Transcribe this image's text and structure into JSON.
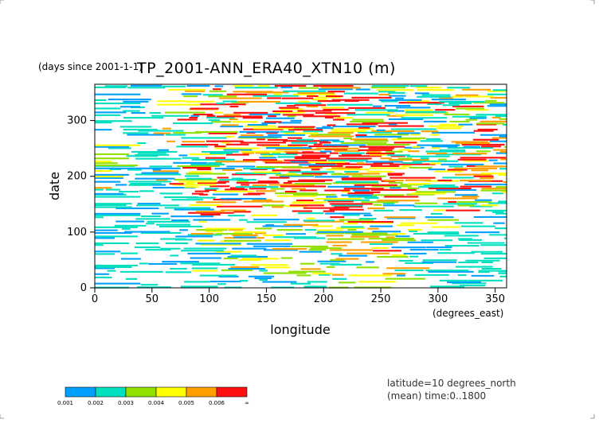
{
  "chart_data": {
    "type": "heatmap",
    "title": "TP_2001-ANN_ERA40_XTN10 (m)",
    "y_units_note": "(days since 2001-1-1)",
    "xlabel": "longitude",
    "x_units": "(degrees_east)",
    "ylabel": "date",
    "xlim": [
      0,
      360
    ],
    "ylim": [
      0,
      365
    ],
    "x_ticks": [
      0,
      50,
      100,
      150,
      200,
      250,
      300,
      350
    ],
    "y_ticks": [
      0,
      100,
      200,
      300
    ],
    "info_lines": [
      "latitude=10 degrees_north",
      "(mean) time:0..1800"
    ],
    "colorbar": {
      "levels": [
        "0.001",
        "0.002",
        "0.003",
        "0.004",
        "0.005",
        "0.006",
        "∞"
      ],
      "colors": [
        "#00a0ff",
        "#00e0c0",
        "#90e000",
        "#ffff00",
        "#ffa000",
        "#ff1010"
      ]
    },
    "longitude_activity": [
      {
        "from": 0,
        "to": 8,
        "level": 0.35
      },
      {
        "from": 8,
        "to": 20,
        "level": 0.25
      },
      {
        "from": 20,
        "to": 35,
        "level": 0.3
      },
      {
        "from": 35,
        "to": 40,
        "level": 0.2
      },
      {
        "from": 40,
        "to": 50,
        "level": 0.05
      },
      {
        "from": 50,
        "to": 65,
        "level": 0.4
      },
      {
        "from": 65,
        "to": 80,
        "level": 0.6
      },
      {
        "from": 80,
        "to": 100,
        "level": 0.75
      },
      {
        "from": 100,
        "to": 110,
        "level": 0.7
      },
      {
        "from": 110,
        "to": 130,
        "level": 0.8
      },
      {
        "from": 130,
        "to": 160,
        "level": 0.75
      },
      {
        "from": 160,
        "to": 200,
        "level": 0.85
      },
      {
        "from": 200,
        "to": 260,
        "level": 0.9
      },
      {
        "from": 260,
        "to": 275,
        "level": 0.6
      },
      {
        "from": 275,
        "to": 285,
        "level": 0.45
      },
      {
        "from": 285,
        "to": 300,
        "level": 0.55
      },
      {
        "from": 300,
        "to": 340,
        "level": 0.65
      },
      {
        "from": 340,
        "to": 360,
        "level": 0.4
      }
    ],
    "date_activity": [
      {
        "from": 0,
        "to": 20,
        "level": 0.35
      },
      {
        "from": 20,
        "to": 60,
        "level": 0.4
      },
      {
        "from": 60,
        "to": 100,
        "level": 0.45
      },
      {
        "from": 100,
        "to": 130,
        "level": 0.55
      },
      {
        "from": 130,
        "to": 170,
        "level": 0.7
      },
      {
        "from": 170,
        "to": 260,
        "level": 0.95
      },
      {
        "from": 260,
        "to": 320,
        "level": 0.85
      },
      {
        "from": 320,
        "to": 365,
        "level": 0.75
      }
    ]
  }
}
